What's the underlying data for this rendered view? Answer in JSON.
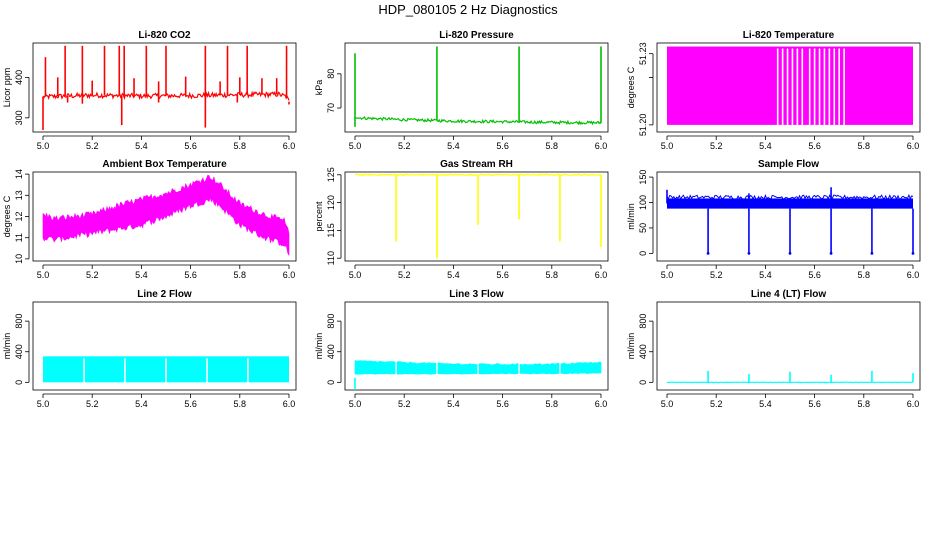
{
  "page_title": "HDP_080105  2 Hz Diagnostics",
  "chart_data": [
    {
      "type": "line",
      "title": "Li-820 CO2",
      "ylabel": "Licor ppm",
      "color": "#ff0000",
      "xlim": [
        5.0,
        6.0
      ],
      "ylim": [
        265,
        485
      ],
      "xticks": [
        "5.0",
        "5.2",
        "5.4",
        "5.6",
        "5.8",
        "6.0"
      ],
      "yticks": [
        "300",
        "400"
      ],
      "series": [
        {
          "baseline": [
            [
              5.0,
              352
            ],
            [
              5.2,
              356
            ],
            [
              5.4,
              354
            ],
            [
              5.6,
              355
            ],
            [
              5.8,
              357
            ],
            [
              5.96,
              358
            ],
            [
              5.99,
              352
            ],
            [
              6.0,
              340
            ]
          ],
          "noise": 6,
          "spikes": [
            {
              "x": 5.01,
              "y": 450
            },
            {
              "x": 5.06,
              "y": 400
            },
            {
              "x": 5.09,
              "y": 478
            },
            {
              "x": 5.16,
              "y": 478
            },
            {
              "x": 5.2,
              "y": 392
            },
            {
              "x": 5.25,
              "y": 478
            },
            {
              "x": 5.31,
              "y": 478
            },
            {
              "x": 5.33,
              "y": 478
            },
            {
              "x": 5.37,
              "y": 398
            },
            {
              "x": 5.42,
              "y": 478
            },
            {
              "x": 5.47,
              "y": 390
            },
            {
              "x": 5.5,
              "y": 478
            },
            {
              "x": 5.58,
              "y": 402
            },
            {
              "x": 5.66,
              "y": 478
            },
            {
              "x": 5.72,
              "y": 390
            },
            {
              "x": 5.75,
              "y": 478
            },
            {
              "x": 5.8,
              "y": 400
            },
            {
              "x": 5.83,
              "y": 478
            },
            {
              "x": 5.89,
              "y": 398
            },
            {
              "x": 5.95,
              "y": 398
            },
            {
              "x": 5.99,
              "y": 478
            }
          ],
          "dips": [
            {
              "x": 5.0,
              "y": 270
            },
            {
              "x": 5.1,
              "y": 338
            },
            {
              "x": 5.16,
              "y": 335
            },
            {
              "x": 5.32,
              "y": 282
            },
            {
              "x": 5.47,
              "y": 338
            },
            {
              "x": 5.66,
              "y": 276
            },
            {
              "x": 5.79,
              "y": 338
            },
            {
              "x": 6.0,
              "y": 333
            }
          ]
        }
      ]
    },
    {
      "type": "line",
      "title": "Li-820 Pressure",
      "ylabel": "kPa",
      "color": "#00c000",
      "xlim": [
        5.0,
        6.0
      ],
      "ylim": [
        63,
        89
      ],
      "xticks": [
        "5.0",
        "5.2",
        "5.4",
        "5.6",
        "5.8",
        "6.0"
      ],
      "yticks": [
        "70",
        "80"
      ],
      "series": [
        {
          "baseline": [
            [
              5.0,
              67.5
            ],
            [
              5.02,
              67.1
            ],
            [
              5.2,
              66.6
            ],
            [
              5.4,
              66.2
            ],
            [
              5.6,
              66.0
            ],
            [
              5.8,
              65.8
            ],
            [
              6.0,
              65.7
            ]
          ],
          "noise": 0.4,
          "spikes": [
            {
              "x": 5.0,
              "y": 86
            },
            {
              "x": 5.333,
              "y": 88
            },
            {
              "x": 5.667,
              "y": 88
            },
            {
              "x": 6.0,
              "y": 88
            }
          ],
          "dips": [
            {
              "x": 5.0,
              "y": 64.5
            }
          ]
        }
      ]
    },
    {
      "type": "line",
      "title": "Li-820 Temperature",
      "ylabel": "degrees C",
      "color": "#ff00ff",
      "xlim": [
        5.0,
        6.0
      ],
      "ylim": [
        51.197,
        51.2345
      ],
      "xticks": [
        "5.0",
        "5.2",
        "5.4",
        "5.6",
        "5.8",
        "6.0"
      ],
      "yticks": [
        "51.20",
        "51.23"
      ],
      "extra_yticks": [
        "51.22"
      ],
      "series": [
        {
          "band": [
            51.2,
            51.233
          ],
          "gaps": [
            5.45,
            5.47,
            5.49,
            5.51,
            5.53,
            5.55,
            5.58,
            5.6,
            5.62,
            5.64,
            5.66,
            5.68,
            5.7,
            5.72
          ]
        }
      ]
    },
    {
      "type": "line",
      "title": "Ambient Box Temperature",
      "ylabel": "degrees C",
      "color": "#ff00ff",
      "xlim": [
        5.0,
        6.0
      ],
      "ylim": [
        9.9,
        14.1
      ],
      "xticks": [
        "5.0",
        "5.2",
        "5.4",
        "5.6",
        "5.8",
        "6.0"
      ],
      "yticks": [
        "10",
        "11",
        "12",
        "13",
        "14"
      ],
      "series": [
        {
          "upper": [
            [
              5.0,
              12.1
            ],
            [
              5.05,
              11.9
            ],
            [
              5.2,
              12.1
            ],
            [
              5.3,
              12.5
            ],
            [
              5.4,
              12.8
            ],
            [
              5.5,
              13.1
            ],
            [
              5.6,
              13.5
            ],
            [
              5.68,
              13.9
            ],
            [
              5.72,
              13.5
            ],
            [
              5.8,
              12.6
            ],
            [
              5.9,
              12.1
            ],
            [
              5.98,
              11.8
            ],
            [
              6.0,
              11.2
            ]
          ],
          "lower": [
            [
              5.0,
              11.0
            ],
            [
              5.05,
              10.9
            ],
            [
              5.2,
              11.2
            ],
            [
              5.3,
              11.4
            ],
            [
              5.4,
              11.6
            ],
            [
              5.5,
              12.0
            ],
            [
              5.6,
              12.5
            ],
            [
              5.68,
              12.8
            ],
            [
              5.72,
              12.5
            ],
            [
              5.8,
              11.6
            ],
            [
              5.9,
              11.0
            ],
            [
              5.98,
              10.7
            ],
            [
              6.0,
              10.2
            ]
          ]
        }
      ]
    },
    {
      "type": "line",
      "title": "Gas Stream RH",
      "ylabel": "percent",
      "color": "#ffff00",
      "xlim": [
        5.0,
        6.0
      ],
      "ylim": [
        109.5,
        125.5
      ],
      "xticks": [
        "5.0",
        "5.2",
        "5.4",
        "5.6",
        "5.8",
        "6.0"
      ],
      "yticks": [
        "110",
        "115",
        "120",
        "125"
      ],
      "series": [
        {
          "baseline": [
            [
              5.0,
              125
            ],
            [
              6.0,
              125
            ]
          ],
          "noise": 0.1,
          "dips": [
            {
              "x": 5.167,
              "y": 113
            },
            {
              "x": 5.333,
              "y": 110
            },
            {
              "x": 5.5,
              "y": 116
            },
            {
              "x": 5.667,
              "y": 117
            },
            {
              "x": 5.833,
              "y": 113
            },
            {
              "x": 6.0,
              "y": 112
            }
          ]
        }
      ]
    },
    {
      "type": "line",
      "title": "Sample Flow",
      "ylabel": "ml/min",
      "color": "#0000ff",
      "xlim": [
        5.0,
        6.0
      ],
      "ylim": [
        -15,
        160
      ],
      "xticks": [
        "5.0",
        "5.2",
        "5.4",
        "5.6",
        "5.8",
        "6.0"
      ],
      "yticks": [
        "0",
        "50",
        "100",
        "150"
      ],
      "series": [
        {
          "band": [
            88,
            108
          ],
          "dips": [
            {
              "x": 5.167,
              "y": 0
            },
            {
              "x": 5.333,
              "y": 0
            },
            {
              "x": 5.5,
              "y": 0
            },
            {
              "x": 5.667,
              "y": 0
            },
            {
              "x": 5.833,
              "y": 0
            },
            {
              "x": 6.0,
              "y": 0
            }
          ],
          "spikes": [
            {
              "x": 5.0,
              "y": 125
            },
            {
              "x": 5.333,
              "y": 118
            },
            {
              "x": 5.667,
              "y": 130
            }
          ]
        }
      ]
    },
    {
      "type": "line",
      "title": "Line 2 Flow",
      "ylabel": "ml/min",
      "color": "#00ffff",
      "xlim": [
        5.0,
        6.0
      ],
      "ylim": [
        -100,
        1050
      ],
      "xticks": [
        "5.0",
        "5.2",
        "5.4",
        "5.6",
        "5.8",
        "6.0"
      ],
      "yticks": [
        "0",
        "400",
        "800"
      ],
      "series": [
        {
          "band": [
            0,
            340
          ],
          "gaps": [
            5.167,
            5.333,
            5.5,
            5.667,
            5.833
          ]
        }
      ]
    },
    {
      "type": "line",
      "title": "Line 3 Flow",
      "ylabel": "ml/min",
      "color": "#00ffff",
      "xlim": [
        5.0,
        6.0
      ],
      "ylim": [
        -100,
        1050
      ],
      "xticks": [
        "5.0",
        "5.2",
        "5.4",
        "5.6",
        "5.8",
        "6.0"
      ],
      "yticks": [
        "0",
        "400",
        "800"
      ],
      "series": [
        {
          "band_edges": [
            [
              5.0,
              110,
              280
            ],
            [
              5.2,
              110,
              260
            ],
            [
              5.4,
              110,
              240
            ],
            [
              5.6,
              115,
              235
            ],
            [
              5.8,
              115,
              240
            ],
            [
              6.0,
              120,
              260
            ]
          ],
          "gaps": [
            5.167,
            5.333,
            5.5,
            5.667,
            5.833
          ],
          "dips": [
            {
              "x": 5.0,
              "y": 60
            }
          ]
        }
      ]
    },
    {
      "type": "line",
      "title": "Line 4 (LT) Flow",
      "ylabel": "ml/min",
      "color": "#00ffff",
      "xlim": [
        5.0,
        6.0
      ],
      "ylim": [
        -100,
        1050
      ],
      "xticks": [
        "5.0",
        "5.2",
        "5.4",
        "5.6",
        "5.8",
        "6.0"
      ],
      "yticks": [
        "0",
        "400",
        "800"
      ],
      "series": [
        {
          "baseline": [
            [
              5.0,
              0
            ],
            [
              6.0,
              0
            ]
          ],
          "noise": 3,
          "spikes": [
            {
              "x": 5.167,
              "y": 150
            },
            {
              "x": 5.333,
              "y": 110
            },
            {
              "x": 5.5,
              "y": 140
            },
            {
              "x": 5.667,
              "y": 100
            },
            {
              "x": 5.833,
              "y": 150
            },
            {
              "x": 6.0,
              "y": 120
            }
          ]
        }
      ]
    }
  ]
}
